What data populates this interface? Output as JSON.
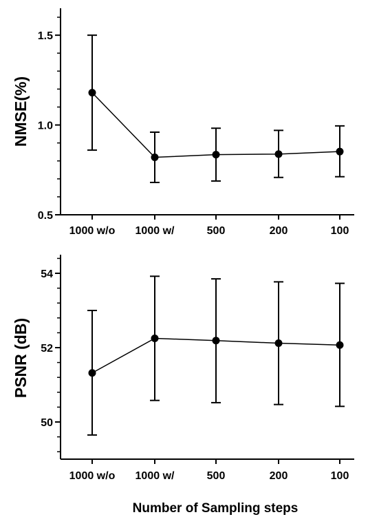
{
  "xlabel": "Number of Sampling steps",
  "chart_data": [
    {
      "type": "line",
      "categories": [
        "1000 w/o",
        "1000 w/",
        "500",
        "200",
        "100"
      ],
      "ylabel": "NMSE(%)",
      "ylim": [
        0.5,
        1.65
      ],
      "yticks": [
        0.5,
        1.0,
        1.5
      ],
      "ytick_labels": [
        "0.5",
        "1.0",
        "1.5"
      ],
      "minor_ticks": true,
      "series": [
        {
          "values": [
            1.18,
            0.82,
            0.835,
            0.838,
            0.852
          ],
          "err_upper": [
            1.5,
            0.96,
            0.982,
            0.97,
            0.995
          ],
          "err_lower": [
            0.86,
            0.68,
            0.688,
            0.708,
            0.712
          ]
        }
      ]
    },
    {
      "type": "line",
      "categories": [
        "1000 w/o",
        "1000 w/",
        "500",
        "200",
        "100"
      ],
      "ylabel": "PSNR (dB)",
      "ylim": [
        49.0,
        54.5
      ],
      "yticks": [
        50,
        52,
        54
      ],
      "ytick_labels": [
        "50",
        "52",
        "54"
      ],
      "minor_ticks": true,
      "series": [
        {
          "values": [
            51.32,
            52.25,
            52.19,
            52.12,
            52.07
          ],
          "err_upper": [
            53.0,
            53.92,
            53.85,
            53.77,
            53.73
          ],
          "err_lower": [
            49.65,
            50.58,
            50.52,
            50.47,
            50.42
          ]
        }
      ]
    }
  ]
}
